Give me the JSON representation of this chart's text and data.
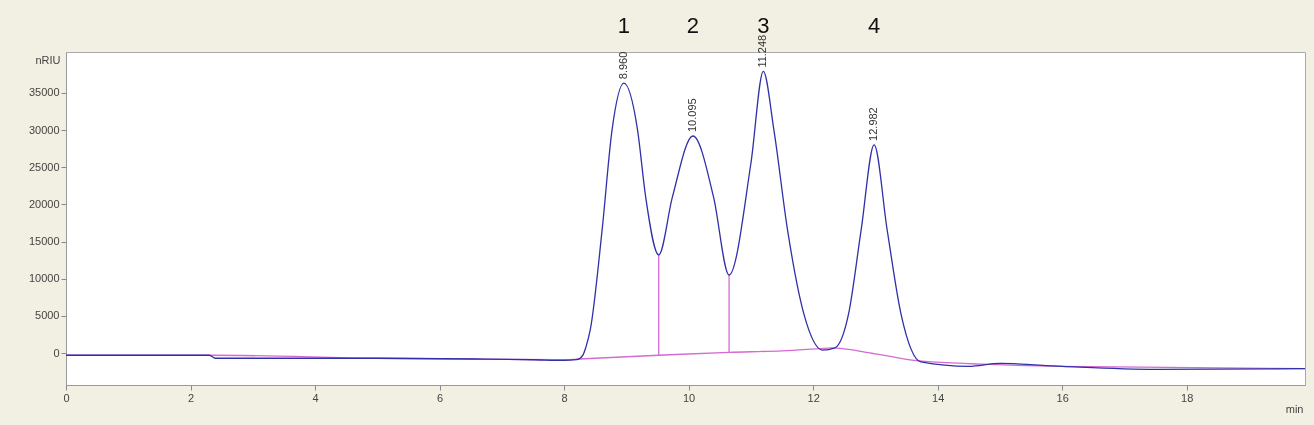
{
  "chart_data": {
    "type": "line",
    "ylabel": "nRIU",
    "xlabel": "min",
    "xlim": [
      0,
      19.9
    ],
    "xticks": [
      0,
      2,
      4,
      6,
      8,
      10,
      12,
      14,
      16,
      18
    ],
    "ylim": [
      -4300,
      40500
    ],
    "yticks": [
      0,
      5000,
      10000,
      15000,
      20000,
      25000,
      30000,
      35000
    ],
    "grid": false,
    "marker": "none",
    "line_style": "solid",
    "series": [
      {
        "type": "line",
        "color": "#d46ad4",
        "x": [
          0,
          2.3,
          5,
          8.0,
          8.25,
          9.52,
          10.65,
          11.5,
          12.1,
          12.3,
          13.0,
          13.75,
          16,
          19.9
        ],
        "values": [
          -300,
          -300,
          -700,
          -900,
          -800,
          -300,
          100,
          300,
          600,
          700,
          -100,
          -1100,
          -1800,
          -2100
        ]
      },
      {
        "type": "line",
        "color": "#d46ad4",
        "x": [
          9.52,
          9.52
        ],
        "values": [
          -300,
          13200
        ]
      },
      {
        "type": "line",
        "color": "#d46ad4",
        "x": [
          10.65,
          10.65
        ],
        "values": [
          100,
          10500
        ]
      },
      {
        "type": "line",
        "color": "#3030a8",
        "x": [
          0,
          1.15,
          2.3,
          2.4,
          5,
          6.6,
          7.5,
          8.0,
          8.2,
          8.3,
          8.35,
          8.42,
          8.61,
          8.77,
          8.96,
          9.18,
          9.31,
          9.52,
          9.74,
          10.07,
          10.4,
          10.65,
          11.0,
          11.2,
          11.37,
          11.59,
          11.85,
          12.15,
          12.35,
          12.57,
          12.77,
          12.98,
          13.19,
          13.41,
          13.73,
          14.5,
          15.0,
          16.0,
          17.5,
          19.9
        ],
        "values": [
          -300,
          -300,
          -300,
          -700,
          -700,
          -800,
          -900,
          -1000,
          -900,
          -300,
          800,
          3100,
          16500,
          30000,
          36300,
          30000,
          21000,
          13200,
          21000,
          29200,
          21000,
          10500,
          25500,
          37900,
          30000,
          16500,
          5300,
          400,
          700,
          5300,
          16500,
          28000,
          16500,
          5300,
          -1200,
          -1800,
          -1400,
          -1800,
          -2200,
          -2100
        ]
      }
    ],
    "annotations": [
      "1",
      "2",
      "3",
      "4",
      {
        "text": "8.960",
        "x": 8.96,
        "y": 36300
      },
      {
        "text": "10.095",
        "x": 10.07,
        "y": 29200
      },
      {
        "text": "11.248",
        "x": 11.2,
        "y": 37860
      },
      {
        "text": "12.982",
        "x": 12.98,
        "y": 28000
      }
    ]
  }
}
